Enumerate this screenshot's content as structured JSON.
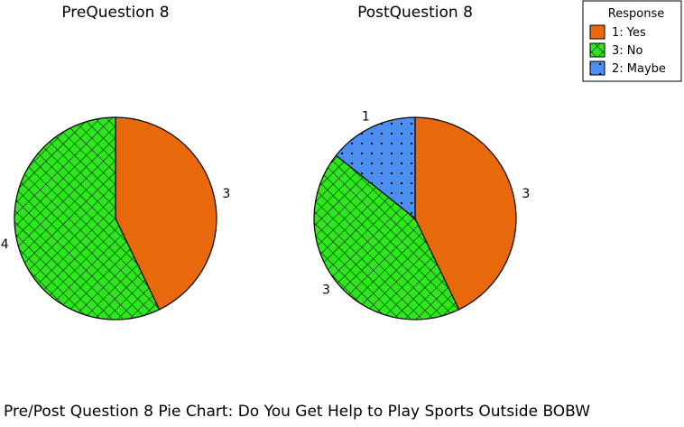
{
  "caption": "Pre/Post Question 8 Pie Chart: Do You Get Help to Play Sports Outside BOBW",
  "legend": {
    "title": "Response",
    "placement": "top-right",
    "entries": [
      {
        "label": "1: Yes",
        "color": "#e8680c",
        "pattern": "solid"
      },
      {
        "label": "3: No",
        "color": "#2ee61e",
        "pattern": "crosshatch"
      },
      {
        "label": "2: Maybe",
        "color": "#4b8ff0",
        "pattern": "dots"
      }
    ]
  },
  "chart_data": [
    {
      "type": "pie",
      "title": "PreQuestion 8",
      "categories": [
        "1: Yes",
        "3: No"
      ],
      "values": [
        3,
        4
      ]
    },
    {
      "type": "pie",
      "title": "PostQuestion 8",
      "categories": [
        "1: Yes",
        "3: No",
        "2: Maybe"
      ],
      "values": [
        3,
        3,
        1
      ]
    }
  ]
}
